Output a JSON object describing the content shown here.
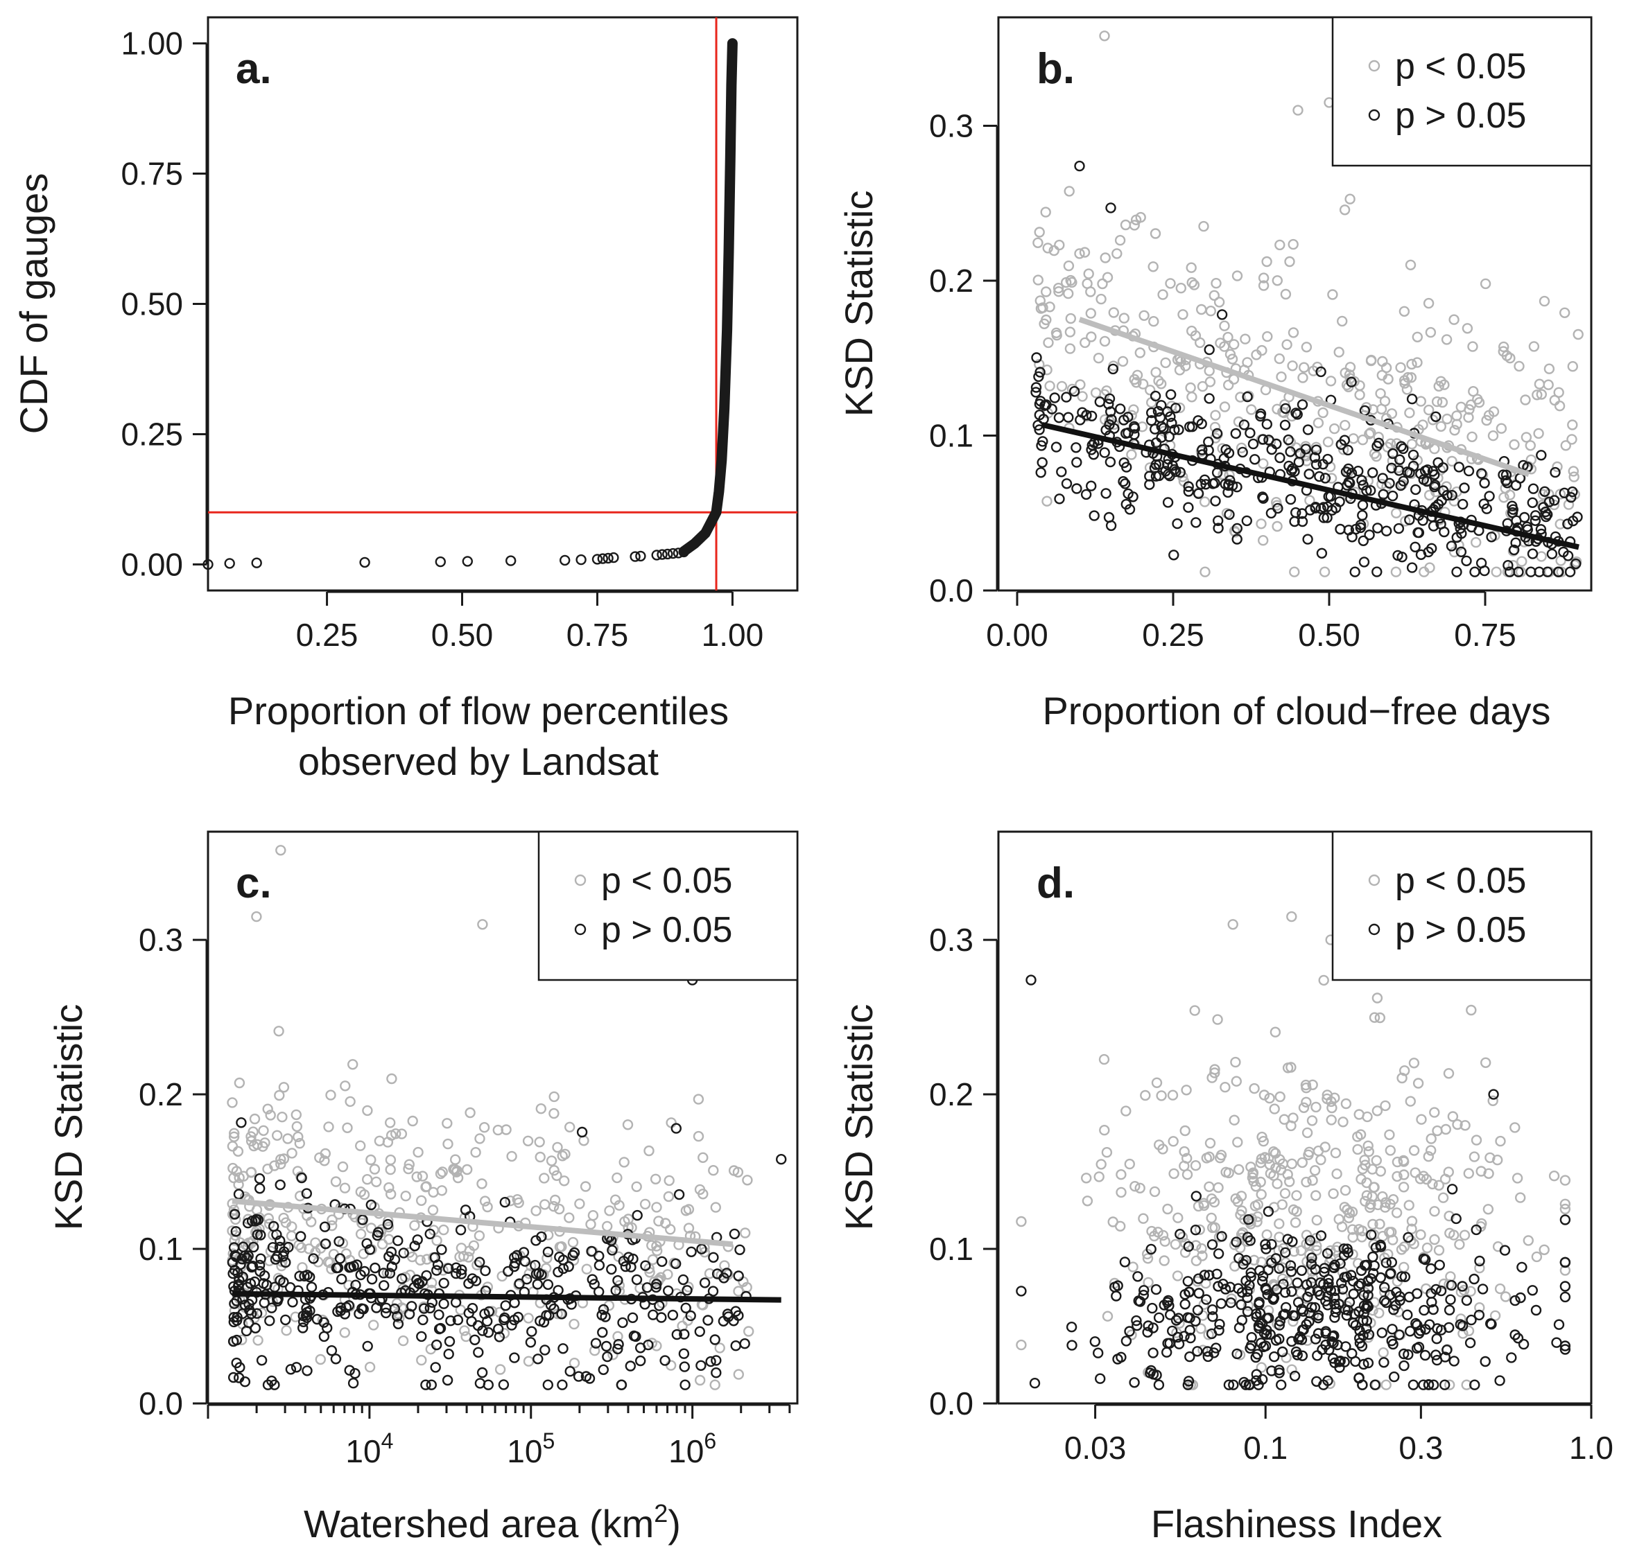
{
  "colors": {
    "gray_points": "#b3b3b3",
    "black_points": "#1a1a1a",
    "reference_lines": "#e8261c",
    "gray_fit_line": "#bdbdbd",
    "black_fit_line": "#111111"
  },
  "chart_data": [
    {
      "id": "a",
      "type": "line",
      "panel_label": "a.",
      "xlabel_line1": "Proportion of flow percentiles",
      "xlabel_line2": "observed by Landsat",
      "ylabel": "CDF of gauges",
      "xlim": [
        0.03,
        1.12
      ],
      "ylim": [
        -0.05,
        1.05
      ],
      "xticks": [
        0.25,
        0.5,
        0.75,
        1.0
      ],
      "xtick_labels": [
        "0.25",
        "0.50",
        "0.75",
        "1.00"
      ],
      "yticks": [
        0.0,
        0.25,
        0.5,
        0.75,
        1.0
      ],
      "ytick_labels": [
        "0.00",
        "0.25",
        "0.50",
        "0.75",
        "1.00"
      ],
      "reference_lines": {
        "vertical_x": 0.97,
        "horizontal_y": 0.1
      },
      "outlier_points": {
        "x": [
          0.03,
          0.07,
          0.12,
          0.32,
          0.46,
          0.51,
          0.59,
          0.69,
          0.72,
          0.75,
          0.76,
          0.77,
          0.78,
          0.82,
          0.83,
          0.86,
          0.87,
          0.88,
          0.89,
          0.9,
          0.91
        ],
        "y": [
          0.0,
          0.002,
          0.003,
          0.004,
          0.005,
          0.006,
          0.007,
          0.008,
          0.009,
          0.01,
          0.011,
          0.012,
          0.013,
          0.015,
          0.016,
          0.018,
          0.019,
          0.02,
          0.021,
          0.022,
          0.024
        ]
      },
      "cdf_curve": {
        "x": [
          0.91,
          0.93,
          0.95,
          0.96,
          0.97,
          0.975,
          0.98,
          0.985,
          0.99,
          0.993,
          0.996,
          0.998,
          1.0
        ],
        "y": [
          0.025,
          0.04,
          0.06,
          0.08,
          0.1,
          0.14,
          0.2,
          0.3,
          0.45,
          0.6,
          0.78,
          0.92,
          1.0
        ]
      }
    },
    {
      "id": "b",
      "type": "scatter",
      "panel_label": "b.",
      "xlabel": "Proportion of cloud−free days",
      "ylabel": "KSD Statistic",
      "xlim": [
        -0.03,
        0.92
      ],
      "ylim": [
        0.0,
        0.37
      ],
      "xticks": [
        0.0,
        0.25,
        0.5,
        0.75
      ],
      "xtick_labels": [
        "0.00",
        "0.25",
        "0.50",
        "0.75"
      ],
      "yticks": [
        0.0,
        0.1,
        0.2,
        0.3
      ],
      "ytick_labels": [
        "0.0",
        "0.1",
        "0.2",
        "0.3"
      ],
      "legend": {
        "position": "top-right",
        "gray_label": "p < 0.05",
        "black_label": "p > 0.05"
      },
      "point_generator": {
        "gray_n": 420,
        "black_n": 430,
        "x_range": [
          0.03,
          0.9
        ],
        "gray_mean": [
          0.175,
          -0.13
        ],
        "gray_sd": 0.045,
        "black_mean": [
          0.108,
          -0.092
        ],
        "black_sd": 0.026
      },
      "fit_gray": {
        "x": [
          0.1,
          0.82
        ],
        "y": [
          0.175,
          0.075
        ]
      },
      "fit_black": {
        "x": [
          0.04,
          0.9
        ],
        "y": [
          0.107,
          0.028
        ]
      },
      "highlight_points": {
        "gray": {
          "x": [
            0.14,
            0.5,
            0.45,
            0.05
          ],
          "y": [
            0.358,
            0.315,
            0.31,
            0.16
          ]
        },
        "black": {
          "x": [
            0.1,
            0.03,
            0.15
          ],
          "y": [
            0.274,
            0.128,
            0.247
          ]
        }
      }
    },
    {
      "id": "c",
      "type": "scatter",
      "panel_label": "c.",
      "xlabel_prefix": "Watershed area (km",
      "xlabel_sup": "2",
      "xlabel_suffix": ")",
      "ylabel": "KSD Statistic",
      "x_scale": "log10",
      "xlim_log10": [
        3.0,
        6.65
      ],
      "ylim": [
        0.0,
        0.37
      ],
      "xticks_log10": [
        4,
        5,
        6
      ],
      "xtick_base": "10",
      "xtick_exponents": [
        "4",
        "5",
        "6"
      ],
      "yticks": [
        0.0,
        0.1,
        0.2,
        0.3
      ],
      "ytick_labels": [
        "0.0",
        "0.1",
        "0.2",
        "0.3"
      ],
      "legend": {
        "position": "top-right",
        "gray_label": "p < 0.05",
        "black_label": "p > 0.05"
      },
      "point_generator": {
        "gray_n": 420,
        "black_n": 430,
        "x_range_log10": [
          3.15,
          6.35
        ],
        "gray_mean": [
          0.133,
          -0.009
        ],
        "gray_sd": 0.045,
        "black_mean": [
          0.072,
          -0.0015
        ],
        "black_sd": 0.028
      },
      "fit_gray": {
        "x_log10": [
          3.15,
          6.25
        ],
        "y": [
          0.131,
          0.103
        ]
      },
      "fit_black": {
        "x_log10": [
          3.15,
          6.55
        ],
        "y": [
          0.071,
          0.067
        ]
      },
      "highlight_points": {
        "gray": {
          "x_log10": [
            3.45,
            3.3,
            4.7
          ],
          "y": [
            0.358,
            0.315,
            0.31
          ]
        },
        "black": {
          "x_log10": [
            6.0,
            6.55,
            5.9
          ],
          "y": [
            0.274,
            0.158,
            0.178
          ]
        }
      }
    },
    {
      "id": "d",
      "type": "scatter",
      "panel_label": "d.",
      "xlabel": "Flashiness Index",
      "ylabel": "KSD Statistic",
      "x_scale": "log10",
      "xlim_log10": [
        -1.82,
        0.0
      ],
      "ylim": [
        0.0,
        0.37
      ],
      "xticks_value": [
        0.03,
        0.1,
        0.3,
        1.0
      ],
      "xtick_labels": [
        "0.03",
        "0.1",
        "0.3",
        "1.0"
      ],
      "yticks": [
        0.0,
        0.1,
        0.2,
        0.3
      ],
      "ytick_labels": [
        "0.0",
        "0.1",
        "0.2",
        "0.3"
      ],
      "legend": {
        "position": "top-right",
        "gray_label": "p < 0.05",
        "black_label": "p > 0.05"
      },
      "point_generator": {
        "gray_n": 420,
        "black_n": 430,
        "x_range_log10": [
          -1.75,
          -0.08
        ],
        "gray_center_log10": -0.85,
        "gray_mean": 0.13,
        "gray_sd": 0.05,
        "black_mean": 0.06,
        "black_sd": 0.027
      },
      "highlight_points": {
        "gray": {
          "x_log10": [
            -0.92,
            -1.1,
            -0.8
          ],
          "y": [
            0.315,
            0.31,
            0.3
          ]
        },
        "black": {
          "x_log10": [
            -1.72,
            -0.08,
            -0.3
          ],
          "y": [
            0.274,
            0.035,
            0.2
          ]
        }
      }
    }
  ]
}
